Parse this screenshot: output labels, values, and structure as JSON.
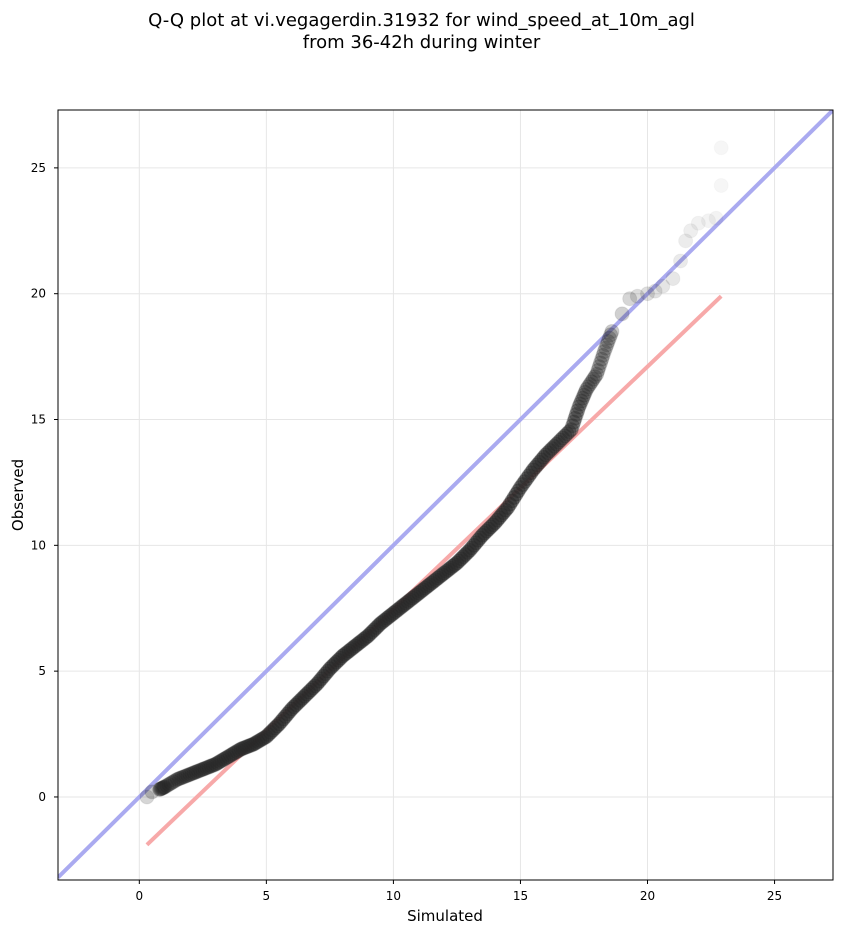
{
  "title_line1": "Q-Q plot at vi.vegagerdin.31932 for wind_speed_at_10m_agl",
  "title_line2": "from 36-42h during winter",
  "colors": {
    "identity_line": "#aaaaf0",
    "fit_line": "#f7a9a9",
    "points": "#000000"
  },
  "chart_data": {
    "type": "scatter",
    "xlabel": "Simulated",
    "ylabel": "Observed",
    "xlim": [
      -3.2,
      27.3
    ],
    "ylim": [
      -3.3,
      27.3
    ],
    "xticks": [
      0,
      5,
      10,
      15,
      20,
      25
    ],
    "yticks": [
      0,
      5,
      10,
      15,
      20,
      25
    ],
    "grid": true,
    "lines": [
      {
        "role": "identity",
        "x": [
          -3.2,
          27.3
        ],
        "y": [
          -3.2,
          27.3
        ],
        "color": "#aaaaf0"
      },
      {
        "role": "fit",
        "x": [
          0.3,
          22.9
        ],
        "y": [
          -1.9,
          19.9
        ],
        "color": "#f7a9a9"
      }
    ],
    "quantiles": {
      "x": [
        0.3,
        0.5,
        0.8,
        1.0,
        1.5,
        2.0,
        2.5,
        3.0,
        3.5,
        4.0,
        4.5,
        5.0,
        5.5,
        6.0,
        6.5,
        7.0,
        7.5,
        8.0,
        8.5,
        9.0,
        9.5,
        10.0,
        10.5,
        11.0,
        11.5,
        12.0,
        12.5,
        13.0,
        13.5,
        14.0,
        14.5,
        15.0,
        15.5,
        16.0,
        16.5,
        17.0,
        17.3,
        17.6,
        18.0,
        18.3,
        18.6,
        19.0,
        19.3,
        19.6,
        20.0,
        20.3,
        20.6,
        21.0,
        21.3,
        21.5,
        21.7,
        22.0,
        22.4,
        22.7,
        22.9,
        22.9
      ],
      "y": [
        0.0,
        0.2,
        0.3,
        0.4,
        0.7,
        0.9,
        1.1,
        1.3,
        1.6,
        1.9,
        2.1,
        2.4,
        2.9,
        3.5,
        4.0,
        4.5,
        5.1,
        5.6,
        6.0,
        6.4,
        6.9,
        7.3,
        7.7,
        8.1,
        8.5,
        8.9,
        9.3,
        9.8,
        10.4,
        10.9,
        11.5,
        12.3,
        13.0,
        13.6,
        14.1,
        14.6,
        15.5,
        16.2,
        16.8,
        17.7,
        18.5,
        19.2,
        19.8,
        19.9,
        20.0,
        20.1,
        20.3,
        20.6,
        21.3,
        22.1,
        22.5,
        22.8,
        22.9,
        23.0,
        24.3,
        25.8
      ],
      "alpha": [
        0.35,
        0.45,
        0.6,
        0.7,
        0.8,
        0.85,
        0.9,
        0.9,
        0.9,
        0.95,
        0.95,
        0.95,
        0.95,
        0.95,
        0.95,
        0.95,
        0.95,
        0.95,
        0.95,
        0.95,
        0.95,
        0.95,
        0.95,
        0.95,
        0.95,
        0.95,
        0.95,
        0.95,
        0.95,
        0.95,
        0.95,
        0.9,
        0.9,
        0.85,
        0.8,
        0.75,
        0.65,
        0.6,
        0.55,
        0.5,
        0.45,
        0.4,
        0.35,
        0.3,
        0.28,
        0.25,
        0.22,
        0.2,
        0.18,
        0.16,
        0.14,
        0.12,
        0.1,
        0.1,
        0.08,
        0.08
      ]
    }
  }
}
